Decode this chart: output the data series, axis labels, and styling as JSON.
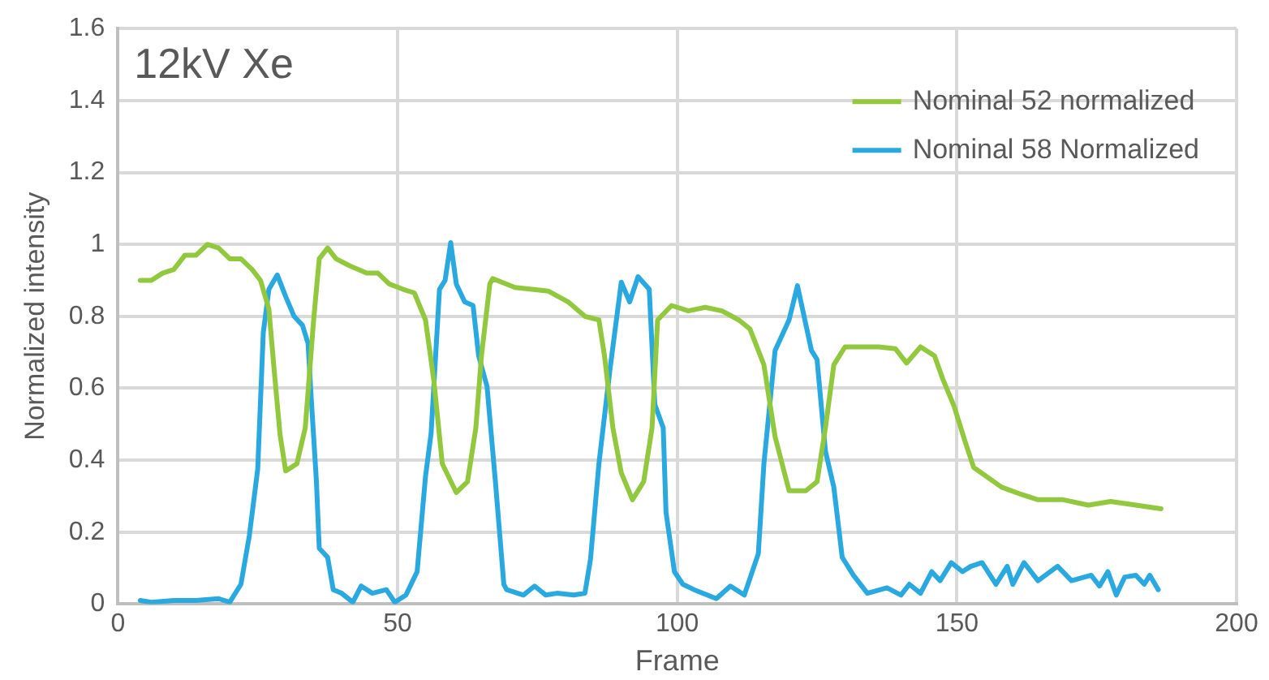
{
  "chart_data": {
    "type": "line",
    "xlabel": "Frame",
    "ylabel": "Normalized intensity",
    "annotations": [
      "12kV Xe"
    ],
    "xlim": [
      0,
      200
    ],
    "xticks": [
      0,
      50,
      100,
      150,
      200
    ],
    "ylim": [
      0,
      1.6
    ],
    "yticks": [
      0,
      0.2,
      0.4,
      0.6,
      0.8,
      1,
      1.2,
      1.4,
      1.6
    ],
    "grid": true,
    "legend": "top right",
    "marker": "none",
    "line_style": "solid",
    "series": [
      {
        "name": "Nominal 52 normalized",
        "color": "#92c83e",
        "x": [
          4,
          6,
          8,
          10,
          12,
          14,
          16,
          18,
          20,
          22,
          24,
          25.5,
          27,
          28,
          29,
          30,
          32,
          33.5,
          35,
          36,
          37.5,
          39,
          41.5,
          44.5,
          46.5,
          48.5,
          51,
          53,
          55,
          56.5,
          58,
          60.5,
          62.5,
          64,
          65,
          66.5,
          67,
          71,
          74,
          77,
          80.5,
          83.5,
          86,
          87,
          88.5,
          90,
          92,
          94,
          95.5,
          96.5,
          99,
          102,
          105,
          108,
          111,
          113,
          115.5,
          117.5,
          120,
          123,
          125,
          126.5,
          128,
          130,
          133,
          136,
          139,
          141,
          143.5,
          146,
          147.5,
          149.5,
          151.5,
          153,
          158,
          161.5,
          164.5,
          169,
          173.5,
          177.5,
          182,
          186.5
        ],
        "values": [
          0.9,
          0.9,
          0.92,
          0.93,
          0.97,
          0.97,
          1,
          0.99,
          0.96,
          0.96,
          0.93,
          0.9,
          0.82,
          0.64,
          0.47,
          0.37,
          0.39,
          0.49,
          0.79,
          0.96,
          0.99,
          0.96,
          0.94,
          0.92,
          0.92,
          0.89,
          0.875,
          0.865,
          0.79,
          0.62,
          0.39,
          0.31,
          0.34,
          0.49,
          0.69,
          0.89,
          0.905,
          0.88,
          0.875,
          0.87,
          0.84,
          0.8,
          0.79,
          0.69,
          0.49,
          0.365,
          0.29,
          0.34,
          0.49,
          0.79,
          0.83,
          0.815,
          0.825,
          0.815,
          0.79,
          0.765,
          0.665,
          0.465,
          0.315,
          0.315,
          0.34,
          0.49,
          0.665,
          0.715,
          0.715,
          0.715,
          0.71,
          0.67,
          0.715,
          0.69,
          0.625,
          0.55,
          0.45,
          0.38,
          0.325,
          0.305,
          0.29,
          0.29,
          0.275,
          0.285,
          0.275,
          0.265
        ]
      },
      {
        "name": "Nominal 58 Normalized",
        "color": "#2aa9e0",
        "x": [
          4,
          6,
          10,
          14,
          18,
          20,
          22,
          23.5,
          25,
          26,
          27,
          28.5,
          30,
          31.5,
          33,
          34,
          34.5,
          35.5,
          36,
          37.5,
          38.5,
          40,
          42,
          43.5,
          45.5,
          48,
          49.5,
          51.5,
          53.5,
          55,
          56,
          57.5,
          58.5,
          59.5,
          60.5,
          62,
          63.5,
          64.5,
          66,
          67.5,
          69,
          69.5,
          72.5,
          74.5,
          76.5,
          78.5,
          81.5,
          83.5,
          84.5,
          86,
          88,
          90,
          91.5,
          93,
          95,
          96,
          97.5,
          98,
          99.5,
          101,
          103,
          107,
          109.5,
          112,
          114.5,
          115.5,
          117.5,
          120,
          121.5,
          124,
          125,
          126.5,
          128,
          129.5,
          131.5,
          134,
          137.5,
          140,
          141.5,
          143.5,
          145.5,
          147,
          149,
          151,
          152.5,
          154.5,
          157,
          159,
          160,
          162,
          164.5,
          168,
          170.5,
          174,
          175.5,
          177,
          178.5,
          180,
          182,
          183.5,
          184.5,
          186
        ],
        "values": [
          0.01,
          0.005,
          0.01,
          0.01,
          0.015,
          0.005,
          0.055,
          0.19,
          0.375,
          0.755,
          0.875,
          0.915,
          0.855,
          0.8,
          0.775,
          0.725,
          0.59,
          0.34,
          0.155,
          0.13,
          0.04,
          0.03,
          0.005,
          0.05,
          0.03,
          0.04,
          0.005,
          0.025,
          0.09,
          0.355,
          0.475,
          0.875,
          0.9,
          1.005,
          0.89,
          0.84,
          0.83,
          0.69,
          0.605,
          0.34,
          0.055,
          0.04,
          0.025,
          0.05,
          0.025,
          0.03,
          0.025,
          0.03,
          0.125,
          0.39,
          0.655,
          0.895,
          0.84,
          0.91,
          0.875,
          0.555,
          0.49,
          0.255,
          0.09,
          0.055,
          0.04,
          0.015,
          0.05,
          0.025,
          0.14,
          0.39,
          0.705,
          0.79,
          0.885,
          0.705,
          0.68,
          0.425,
          0.325,
          0.13,
          0.08,
          0.03,
          0.045,
          0.025,
          0.055,
          0.03,
          0.09,
          0.065,
          0.115,
          0.09,
          0.105,
          0.115,
          0.055,
          0.105,
          0.055,
          0.115,
          0.065,
          0.105,
          0.065,
          0.08,
          0.05,
          0.09,
          0.025,
          0.075,
          0.08,
          0.055,
          0.08,
          0.04
        ]
      }
    ]
  }
}
